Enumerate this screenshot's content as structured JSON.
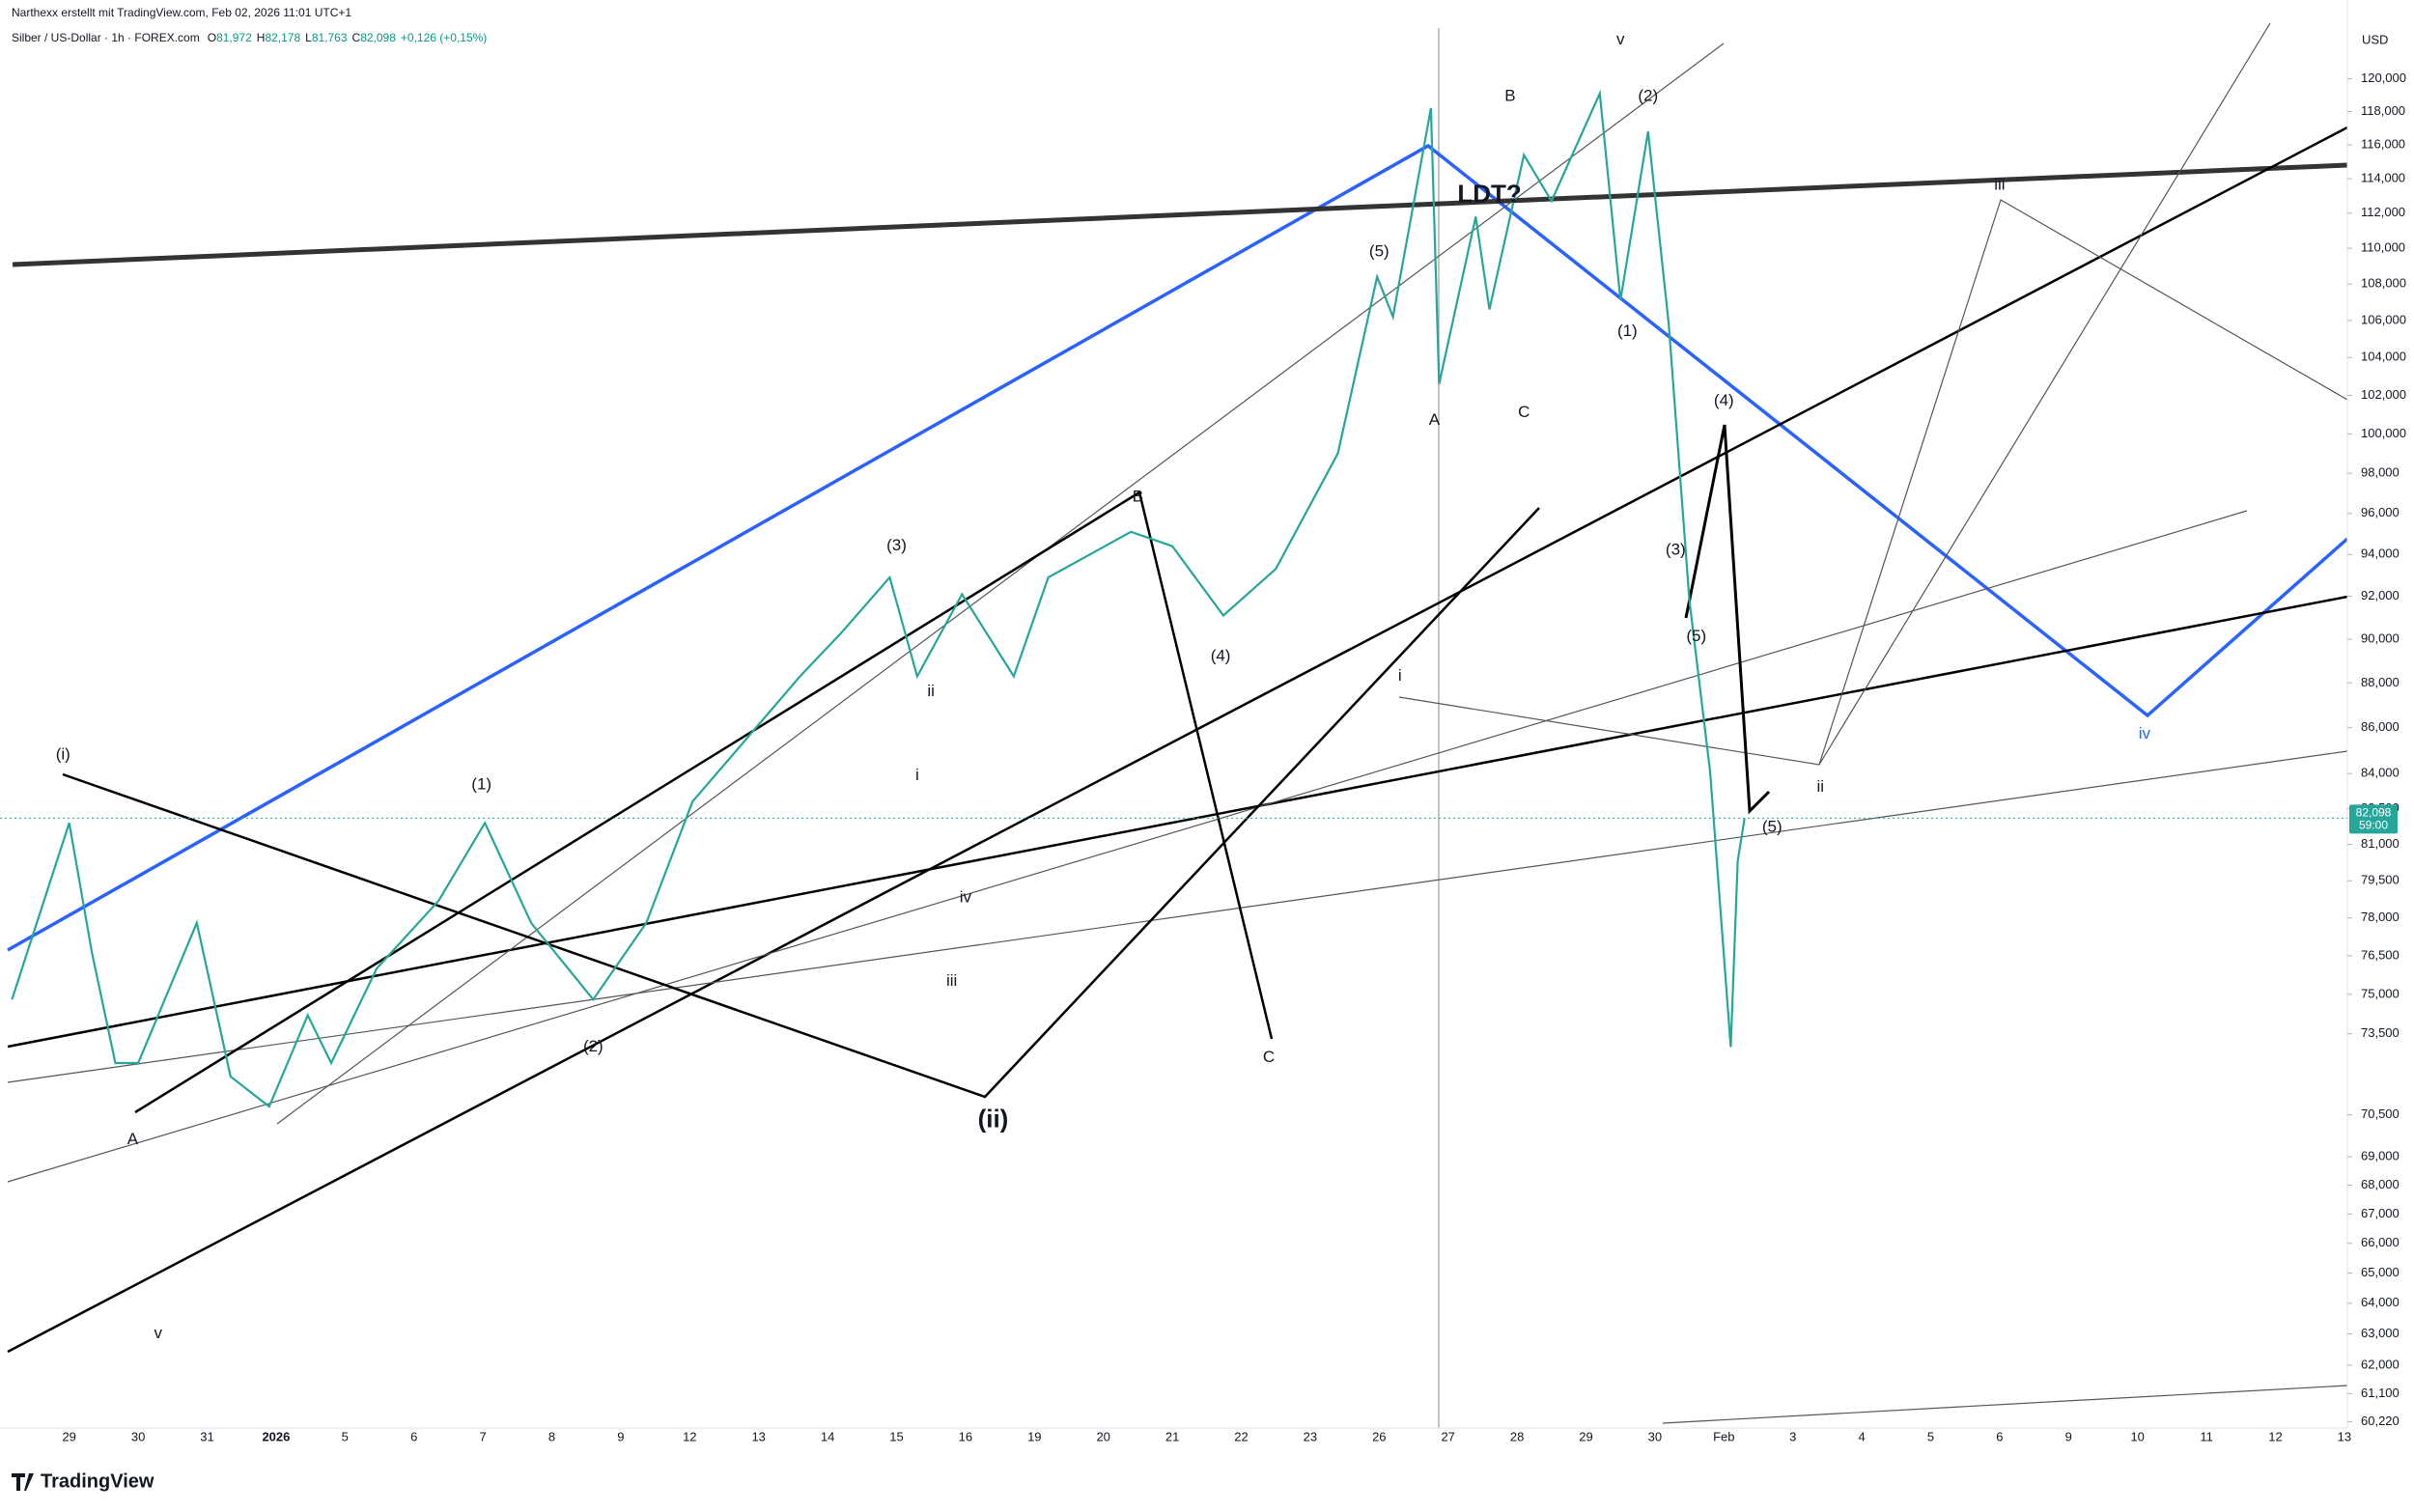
{
  "header": {
    "author_line": "Narthexx erstellt mit TradingView.com, Feb 02, 2026 11:01 UTC+1",
    "symbol": "Silber / US-Dollar · 1h · FOREX.com",
    "ohlc": [
      {
        "key": "O",
        "value": "81,972"
      },
      {
        "key": "H",
        "value": "82,178"
      },
      {
        "key": "L",
        "value": "81,763"
      },
      {
        "key": "C",
        "value": "82,098"
      }
    ],
    "change": "+0,126 (+0,15%)"
  },
  "chart_data": {
    "type": "line",
    "log_scale": true,
    "currency": "USD",
    "categories": [
      "29",
      "30",
      "31",
      "2026",
      "5",
      "6",
      "7",
      "8",
      "9",
      "12",
      "13",
      "14",
      "15",
      "16",
      "19",
      "20",
      "21",
      "22",
      "23",
      "26",
      "27",
      "28",
      "29",
      "30",
      "Feb",
      "3",
      "4",
      "5",
      "6",
      "9",
      "10",
      "11",
      "12",
      "13"
    ],
    "ylim": [
      60030,
      123170
    ],
    "yticks": [
      {
        "value": 120000,
        "label": "120,000"
      },
      {
        "value": 118000,
        "label": "118,000"
      },
      {
        "value": 116000,
        "label": "116,000"
      },
      {
        "value": 114000,
        "label": "114,000"
      },
      {
        "value": 112000,
        "label": "112,000"
      },
      {
        "value": 110000,
        "label": "110,000"
      },
      {
        "value": 108000,
        "label": "108,000"
      },
      {
        "value": 106000,
        "label": "106,000"
      },
      {
        "value": 104000,
        "label": "104,000"
      },
      {
        "value": 102000,
        "label": "102,000"
      },
      {
        "value": 100000,
        "label": "100,000"
      },
      {
        "value": 98000,
        "label": "98,000"
      },
      {
        "value": 96000,
        "label": "96,000"
      },
      {
        "value": 94000,
        "label": "94,000"
      },
      {
        "value": 92000,
        "label": "92,000"
      },
      {
        "value": 90000,
        "label": "90,000"
      },
      {
        "value": 88000,
        "label": "88,000"
      },
      {
        "value": 86000,
        "label": "86,000"
      },
      {
        "value": 84000,
        "label": "84,000"
      },
      {
        "value": 82500,
        "label": "82,500"
      },
      {
        "value": 81000,
        "label": "81,000"
      },
      {
        "value": 79500,
        "label": "79,500"
      },
      {
        "value": 78000,
        "label": "78,000"
      },
      {
        "value": 76500,
        "label": "76,500"
      },
      {
        "value": 75000,
        "label": "75,000"
      },
      {
        "value": 73500,
        "label": "73,500"
      },
      {
        "value": 70500,
        "label": "70,500"
      },
      {
        "value": 69000,
        "label": "69,000"
      },
      {
        "value": 68000,
        "label": "68,000"
      },
      {
        "value": 67000,
        "label": "67,000"
      },
      {
        "value": 66000,
        "label": "66,000"
      },
      {
        "value": 65000,
        "label": "65,000"
      },
      {
        "value": 64000,
        "label": "64,000"
      },
      {
        "value": 63000,
        "label": "63,000"
      },
      {
        "value": 62000,
        "label": "62,000"
      },
      {
        "value": 61100,
        "label": "61,100"
      },
      {
        "value": 60220,
        "label": "60,220"
      }
    ],
    "series": [
      {
        "name": "Silber / US-Dollar",
        "color": "#26a69a",
        "x": [
          -0.83,
          0,
          0.33,
          0.67,
          1,
          1.85,
          2.34,
          2.9,
          3.46,
          3.8,
          4.46,
          5.36,
          6.03,
          6.7,
          7.6,
          8.37,
          9.04,
          9.82,
          10.6,
          11.2,
          11.9,
          12.3,
          12.95,
          13.7,
          14.2,
          15.4,
          16.0,
          16.74,
          17.5,
          18.4,
          18.97,
          19.2,
          19.75,
          19.87,
          20.4,
          20.6,
          21.1,
          21.5,
          22.2,
          22.5,
          22.9,
          23.2,
          23.5,
          23.8,
          24.1,
          24.2,
          24.3
        ],
        "values": [
          74800,
          81900,
          76600,
          72400,
          72400,
          77800,
          71900,
          70800,
          74200,
          72400,
          76000,
          78700,
          81900,
          77800,
          74800,
          77800,
          82800,
          85500,
          88300,
          90300,
          92900,
          88300,
          92100,
          88300,
          92900,
          95100,
          94400,
          91100,
          93300,
          99000,
          108400,
          106200,
          118200,
          102600,
          111800,
          106600,
          115400,
          112700,
          119100,
          107100,
          116800,
          105800,
          91800,
          84100,
          73000,
          80300,
          82098
        ]
      }
    ],
    "last_price": {
      "value": 82098,
      "label": "82,098"
    },
    "countdown": "59:00",
    "annotations": [
      {
        "text": "(i)",
        "x": -0.09,
        "y": 84800
      },
      {
        "text": "(1)",
        "x": 5.98,
        "y": 83500
      },
      {
        "text": "(2)",
        "x": 7.6,
        "y": 73000
      },
      {
        "text": "(3)",
        "x": 12.0,
        "y": 94400
      },
      {
        "text": "(4)",
        "x": 16.7,
        "y": 89200
      },
      {
        "text": "(ii)",
        "x": 13.4,
        "y": 70300
      },
      {
        "text": "B",
        "x": 15.5,
        "y": 96800
      },
      {
        "text": "C",
        "x": 17.4,
        "y": 72600
      },
      {
        "text": "A",
        "x": 0.92,
        "y": 69600
      },
      {
        "text": "v",
        "x": 1.29,
        "y": 63000
      },
      {
        "text": "(5)",
        "x": 19.0,
        "y": 109800
      },
      {
        "text": "LDT?",
        "x": 20.6,
        "y": 113000
      },
      {
        "text": "B",
        "x": 20.9,
        "y": 118900
      },
      {
        "text": "A",
        "x": 19.8,
        "y": 100700
      },
      {
        "text": "C",
        "x": 21.1,
        "y": 101100
      },
      {
        "text": "v",
        "x": 22.5,
        "y": 122400
      },
      {
        "text": "(2)",
        "x": 22.9,
        "y": 118900
      },
      {
        "text": "(1)",
        "x": 22.6,
        "y": 105400
      },
      {
        "text": "(3)",
        "x": 23.3,
        "y": 94200
      },
      {
        "text": "(4)",
        "x": 24.0,
        "y": 101700
      },
      {
        "text": "(5)",
        "x": 23.6,
        "y": 90100
      },
      {
        "text": "(5)",
        "x": 24.7,
        "y": 81700
      },
      {
        "text": "i",
        "x": 19.3,
        "y": 88300
      },
      {
        "text": "ii",
        "x": 25.4,
        "y": 83400
      },
      {
        "text": "iii",
        "x": 28.0,
        "y": 113600
      },
      {
        "text": "iv",
        "x": 30.1,
        "y": 85700,
        "color": "#2962ff"
      },
      {
        "text": "iv",
        "x": 13.0,
        "y": 78800
      },
      {
        "text": "iii",
        "x": 12.8,
        "y": 75500
      },
      {
        "text": "i",
        "x": 12.3,
        "y": 83900
      },
      {
        "text": "ii",
        "x": 12.5,
        "y": 87600
      }
    ]
  },
  "brand": "TradingView"
}
